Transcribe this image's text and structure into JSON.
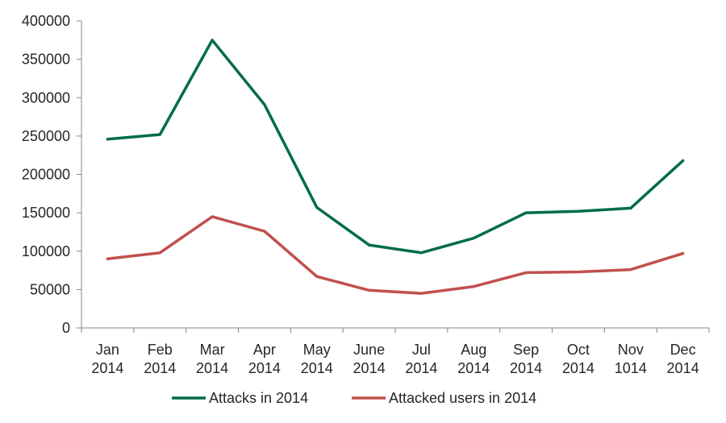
{
  "chart_data": {
    "type": "line",
    "categories": [
      [
        "Jan",
        "2014"
      ],
      [
        "Feb",
        "2014"
      ],
      [
        "Mar",
        "2014"
      ],
      [
        "Apr",
        "2014"
      ],
      [
        "May",
        "2014"
      ],
      [
        "June",
        "2014"
      ],
      [
        "Jul",
        "2014"
      ],
      [
        "Aug",
        "2014"
      ],
      [
        "Sep",
        "2014"
      ],
      [
        "Oct",
        "2014"
      ],
      [
        "Nov",
        "1014"
      ],
      [
        "Dec",
        "2014"
      ]
    ],
    "series": [
      {
        "name": "Attacks in 2014",
        "color": "#006b4e",
        "values": [
          246000,
          252000,
          375000,
          291000,
          157000,
          108000,
          98000,
          117000,
          150000,
          152000,
          156000,
          218000
        ]
      },
      {
        "name": "Attacked users in 2014",
        "color": "#c0504d",
        "values": [
          90000,
          98000,
          145000,
          126000,
          67000,
          49000,
          45000,
          54000,
          72000,
          73000,
          76000,
          97000
        ]
      }
    ],
    "ylim": [
      0,
      400000
    ],
    "yticks": [
      "0",
      "50000",
      "100000",
      "150000",
      "200000",
      "250000",
      "300000",
      "350000",
      "400000"
    ],
    "legend_position": "bottom",
    "grid": false
  }
}
